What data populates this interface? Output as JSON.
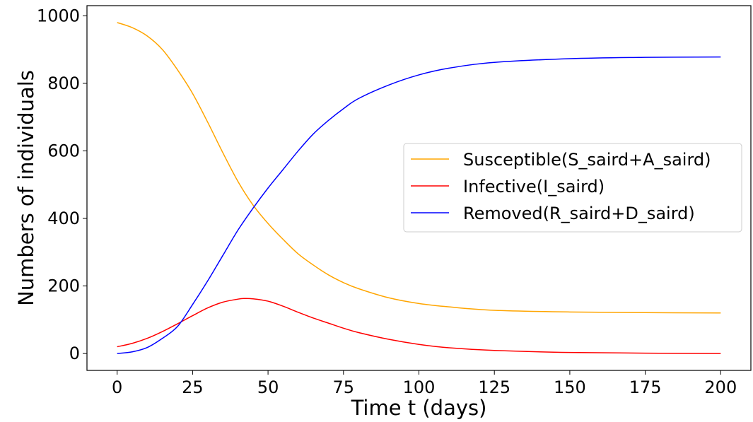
{
  "chart_data": {
    "type": "line",
    "title": "",
    "xlabel": "Time t (days)",
    "ylabel": "Numbers of individuals",
    "xlim": [
      -10,
      210
    ],
    "ylim": [
      -50,
      1030
    ],
    "xticks": [
      0,
      25,
      50,
      75,
      100,
      125,
      150,
      175,
      200
    ],
    "yticks": [
      0,
      200,
      400,
      600,
      800,
      1000
    ],
    "grid": false,
    "legend_position": "center-right",
    "series": [
      {
        "name": "Susceptible(S_saird+A_saird)",
        "color": "#ffa500",
        "x": [
          0,
          5,
          10,
          15,
          20,
          25,
          30,
          35,
          40,
          45,
          50,
          55,
          60,
          65,
          70,
          75,
          80,
          90,
          100,
          110,
          125,
          150,
          175,
          200
        ],
        "y": [
          980,
          965,
          940,
          900,
          840,
          770,
          685,
          595,
          510,
          440,
          385,
          338,
          295,
          262,
          233,
          210,
          192,
          165,
          148,
          138,
          128,
          123,
          121,
          120
        ]
      },
      {
        "name": "Infective(I_saird)",
        "color": "#ff0000",
        "x": [
          0,
          5,
          10,
          15,
          20,
          25,
          30,
          35,
          40,
          42,
          45,
          50,
          55,
          60,
          65,
          70,
          75,
          80,
          90,
          100,
          110,
          125,
          150,
          175,
          200
        ],
        "y": [
          20,
          30,
          45,
          65,
          88,
          112,
          135,
          152,
          161,
          163,
          162,
          155,
          140,
          122,
          105,
          90,
          75,
          62,
          42,
          27,
          17,
          9,
          3,
          1,
          0
        ]
      },
      {
        "name": "Removed(R_saird+D_saird)",
        "color": "#0000ff",
        "x": [
          0,
          5,
          10,
          15,
          20,
          25,
          30,
          35,
          40,
          45,
          50,
          55,
          60,
          65,
          70,
          75,
          80,
          90,
          100,
          110,
          125,
          150,
          175,
          200
        ],
        "y": [
          0,
          5,
          18,
          45,
          80,
          145,
          215,
          290,
          365,
          430,
          490,
          545,
          600,
          650,
          690,
          725,
          755,
          795,
          825,
          845,
          862,
          873,
          877,
          878
        ]
      }
    ]
  }
}
